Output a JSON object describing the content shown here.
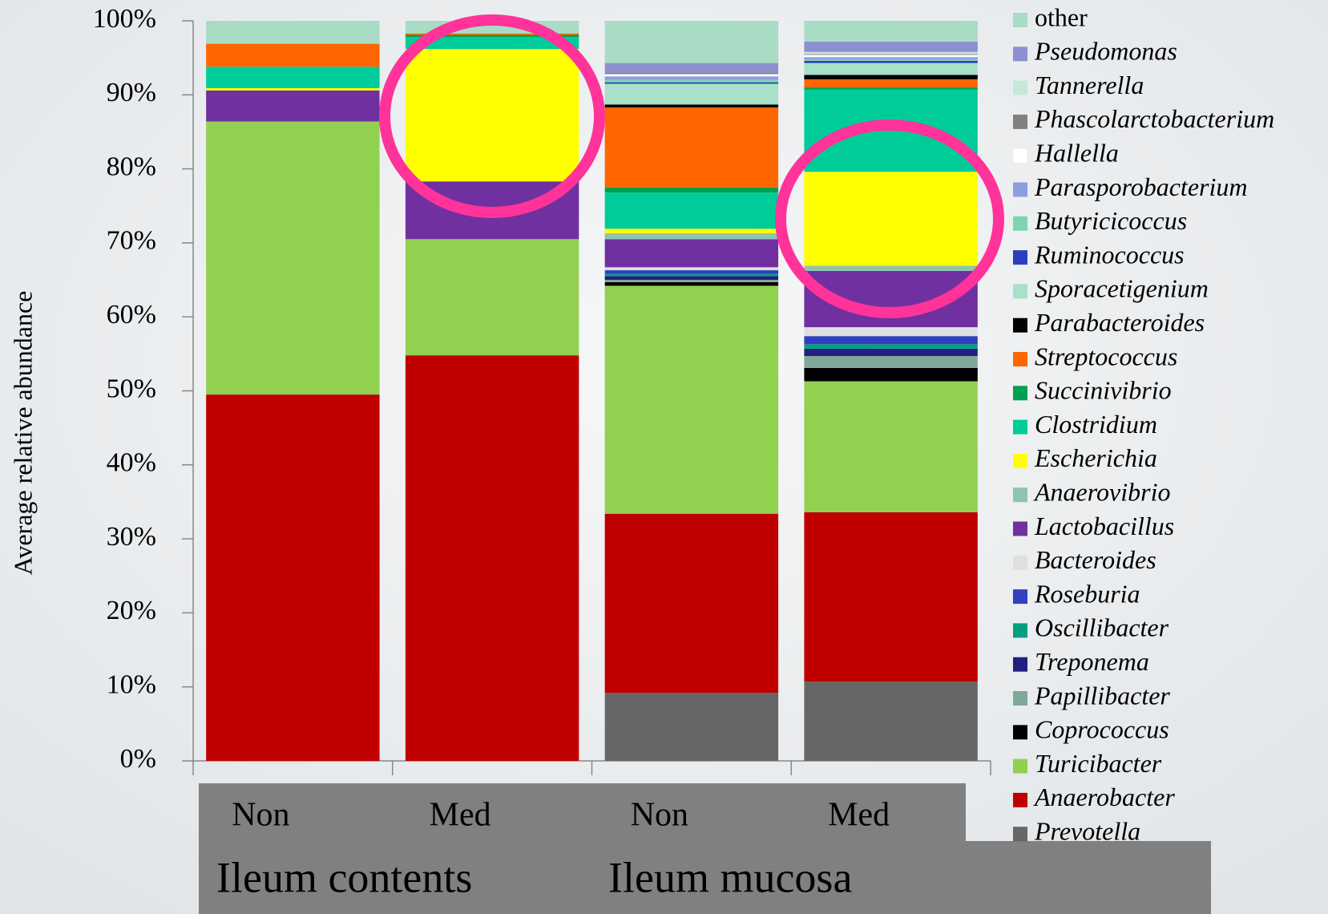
{
  "chart_data": {
    "type": "stacked_bar",
    "y_label": "Average relative abundance",
    "categories": [
      "Non",
      "Med",
      "Non",
      "Med"
    ],
    "groups": [
      "Ileum contents",
      "Ileum mucosa"
    ],
    "ylim": [
      0,
      100
    ],
    "yticks": [
      {
        "value": 0,
        "label": "0%"
      },
      {
        "value": 10,
        "label": "10%"
      },
      {
        "value": 20,
        "label": "20%"
      },
      {
        "value": 30,
        "label": "30%"
      },
      {
        "value": 40,
        "label": "40%"
      },
      {
        "value": 50,
        "label": "50%"
      },
      {
        "value": 60,
        "label": "60%"
      },
      {
        "value": 70,
        "label": "70%"
      },
      {
        "value": 80,
        "label": "80%"
      },
      {
        "value": 90,
        "label": "90%"
      },
      {
        "value": 100,
        "label": "100%"
      }
    ],
    "legend": "right",
    "series": [
      {
        "name": "Prevotella",
        "color": "#666666",
        "values": [
          0,
          0,
          9.2,
          10.7
        ]
      },
      {
        "name": "Anaerobacter",
        "color": "#c00000",
        "values": [
          49.5,
          54.8,
          24.2,
          22.9
        ]
      },
      {
        "name": "Turicibacter",
        "color": "#92d050",
        "values": [
          36.9,
          15.7,
          30.8,
          17.7
        ]
      },
      {
        "name": "Coprococcus",
        "color": "#000000",
        "values": [
          0,
          0,
          0.5,
          1.8
        ]
      },
      {
        "name": "Papillibacter",
        "color": "#80a898",
        "values": [
          0,
          0,
          0.3,
          1.6
        ]
      },
      {
        "name": "Treponema",
        "color": "#202080",
        "values": [
          0,
          0,
          0.5,
          1.0
        ]
      },
      {
        "name": "Oscillibacter",
        "color": "#00a080",
        "values": [
          0,
          0,
          0.3,
          0.6
        ]
      },
      {
        "name": "Roseburia",
        "color": "#3040c0",
        "values": [
          0,
          0,
          0.5,
          1.1
        ]
      },
      {
        "name": "Bacteroides",
        "color": "#e0e0e0",
        "values": [
          0,
          0,
          0.4,
          1.2
        ]
      },
      {
        "name": "Lactobacillus",
        "color": "#7030a0",
        "values": [
          4.2,
          7.8,
          3.8,
          7.6
        ]
      },
      {
        "name": "Anaerovibrio",
        "color": "#8fc4b0",
        "values": [
          0,
          0,
          0.8,
          0.7
        ]
      },
      {
        "name": "Escherichia",
        "color": "#ffff00",
        "values": [
          0.3,
          17.9,
          0.6,
          12.7
        ]
      },
      {
        "name": "Clostridium",
        "color": "#00cc99",
        "values": [
          2.9,
          1.6,
          4.9,
          11.1
        ]
      },
      {
        "name": "Succinivibrio",
        "color": "#00a050",
        "values": [
          0,
          0.3,
          0.7,
          0.3
        ]
      },
      {
        "name": "Streptococcus",
        "color": "#ff6600",
        "values": [
          3.1,
          0.2,
          10.8,
          1.1
        ]
      },
      {
        "name": "Parabacteroides",
        "color": "#000000",
        "values": [
          0,
          0,
          0.4,
          0.6
        ]
      },
      {
        "name": "Sporacetigenium",
        "color": "#a8e0c8",
        "values": [
          0,
          0,
          2.8,
          1.6
        ]
      },
      {
        "name": "Ruminococcus",
        "color": "#2a3fbf",
        "values": [
          0,
          0,
          0.2,
          0.3
        ]
      },
      {
        "name": "Butyricicoccus",
        "color": "#7fd4b0",
        "values": [
          0,
          0,
          0.3,
          0.2
        ]
      },
      {
        "name": "Parasporobacterium",
        "color": "#8c9ee0",
        "values": [
          0,
          0,
          0.5,
          0.3
        ]
      },
      {
        "name": "Hallella",
        "color": "#ffffff",
        "values": [
          0,
          0,
          0.3,
          0.3
        ]
      },
      {
        "name": "Phascolarctobacterium",
        "color": "#808080",
        "values": [
          0,
          0,
          0.2,
          0.1
        ]
      },
      {
        "name": "Tannerella",
        "color": "#c5e8d8",
        "values": [
          0,
          0,
          0,
          0.3
        ]
      },
      {
        "name": "Pseudomonas",
        "color": "#8c8fd0",
        "values": [
          0,
          0,
          1.3,
          1.4
        ]
      },
      {
        "name": "other",
        "color": "#a8dcc4",
        "values": [
          3.1,
          1.7,
          5.7,
          2.8
        ]
      }
    ]
  }
}
